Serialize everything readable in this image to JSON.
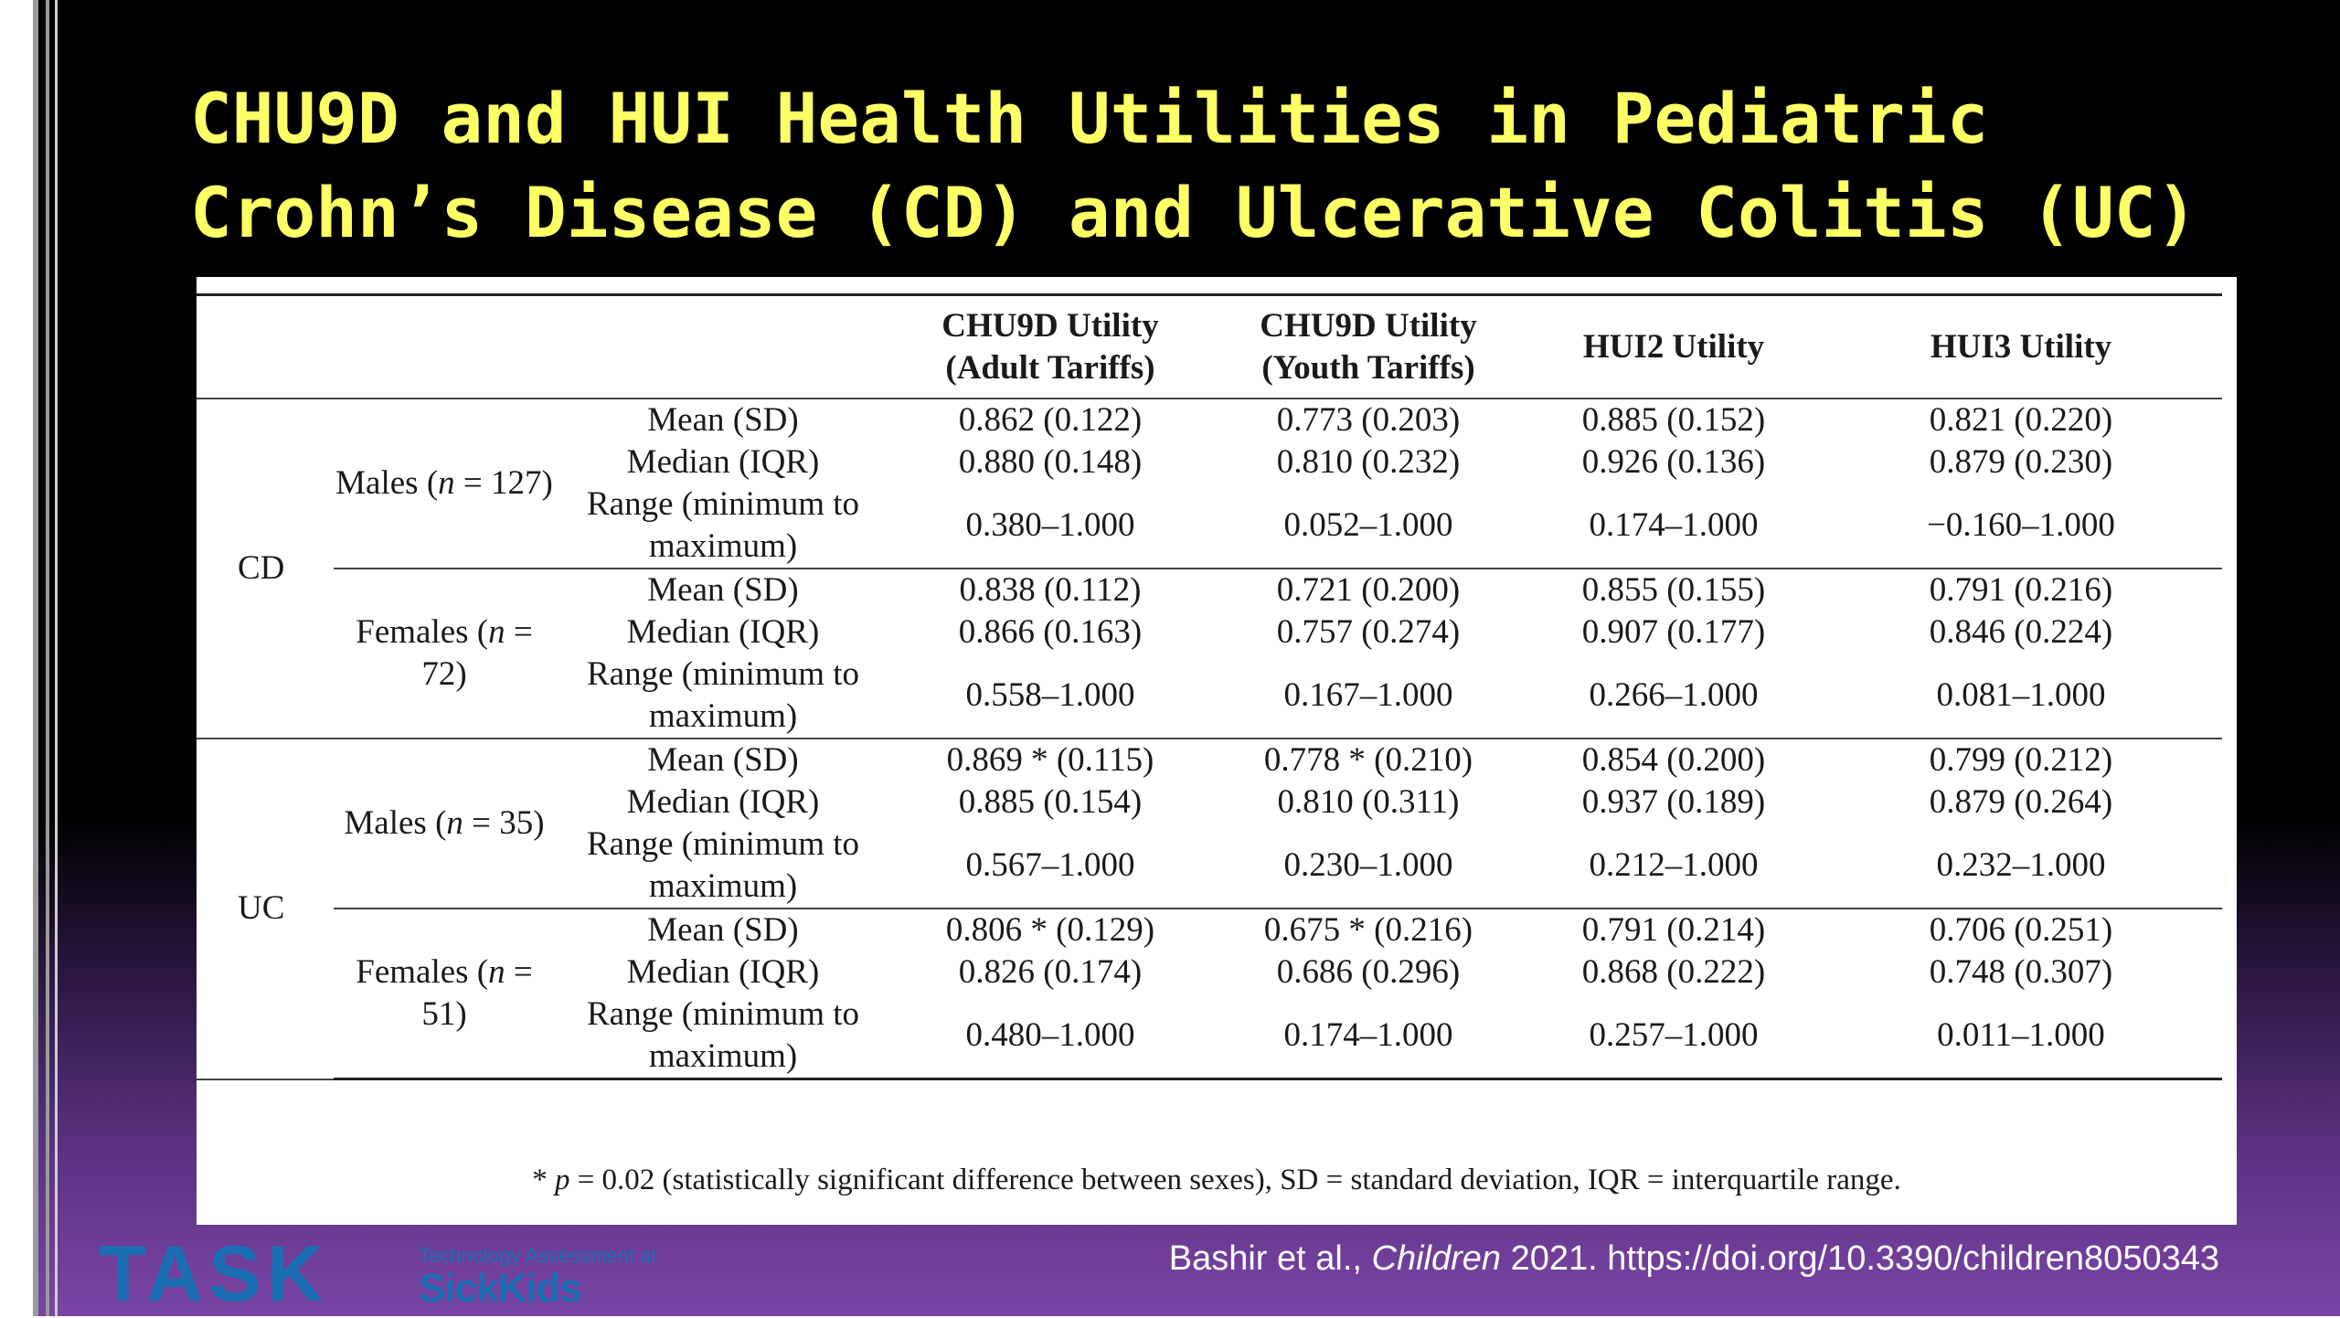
{
  "slide": {
    "title_line1": "CHU9D and HUI Health Utilities in Pediatric",
    "title_line2": "Crohn’s Disease (CD) and Ulcerative Colitis (UC)"
  },
  "table": {
    "headers": {
      "chu9d_adult_line1": "CHU9D Utility",
      "chu9d_adult_line2": "(Adult Tariffs)",
      "chu9d_youth_line1": "CHU9D Utility",
      "chu9d_youth_line2": "(Youth Tariffs)",
      "hui2": "HUI2 Utility",
      "hui3": "HUI3 Utility"
    },
    "stat_labels": {
      "mean": "Mean (SD)",
      "median": "Median (IQR)",
      "range_line1": "Range (minimum to",
      "range_line2": "maximum)"
    },
    "groups": [
      {
        "name": "CD",
        "subgroups": [
          {
            "label_prefix": "Males (",
            "n_symbol": "n",
            "label_suffix": " = 127)",
            "mean": [
              "0.862 (0.122)",
              "0.773 (0.203)",
              "0.885 (0.152)",
              "0.821 (0.220)"
            ],
            "median": [
              "0.880 (0.148)",
              "0.810 (0.232)",
              "0.926 (0.136)",
              "0.879 (0.230)"
            ],
            "range": [
              "0.380–1.000",
              "0.052–1.000",
              "0.174–1.000",
              "−0.160–1.000"
            ]
          },
          {
            "label_prefix": "Females (",
            "n_symbol": "n",
            "label_suffix": " = 72)",
            "mean": [
              "0.838 (0.112)",
              "0.721 (0.200)",
              "0.855 (0.155)",
              "0.791 (0.216)"
            ],
            "median": [
              "0.866 (0.163)",
              "0.757 (0.274)",
              "0.907 (0.177)",
              "0.846 (0.224)"
            ],
            "range": [
              "0.558–1.000",
              "0.167–1.000",
              "0.266–1.000",
              "0.081–1.000"
            ]
          }
        ]
      },
      {
        "name": "UC",
        "subgroups": [
          {
            "label_prefix": "Males (",
            "n_symbol": "n",
            "label_suffix": " = 35)",
            "mean": [
              "0.869 * (0.115)",
              "0.778 * (0.210)",
              "0.854 (0.200)",
              "0.799 (0.212)"
            ],
            "median": [
              "0.885 (0.154)",
              "0.810 (0.311)",
              "0.937 (0.189)",
              "0.879 (0.264)"
            ],
            "range": [
              "0.567–1.000",
              "0.230–1.000",
              "0.212–1.000",
              "0.232–1.000"
            ]
          },
          {
            "label_prefix": "Females (",
            "n_symbol": "n",
            "label_suffix": " = 51)",
            "mean": [
              "0.806 * (0.129)",
              "0.675 * (0.216)",
              "0.791 (0.214)",
              "0.706 (0.251)"
            ],
            "median": [
              "0.826 (0.174)",
              "0.686 (0.296)",
              "0.868 (0.222)",
              "0.748 (0.307)"
            ],
            "range": [
              "0.480–1.000",
              "0.174–1.000",
              "0.257–1.000",
              "0.011–1.000"
            ]
          }
        ]
      }
    ],
    "footnote_prefix": "* ",
    "footnote_p": "p",
    "footnote_rest": " = 0.02 (statistically significant difference between sexes), SD = standard deviation, IQR = interquartile range."
  },
  "logo": {
    "word": "TASK",
    "tagline": "Technology Assessment at",
    "sickkids": "SickKids"
  },
  "citation": {
    "authors": "Bashir et al., ",
    "journal": "Children",
    "rest": " 2021. https://doi.org/10.3390/children8050343"
  },
  "colors": {
    "title": "#ffff66",
    "logo_blue": "#1a6fb4",
    "background_top": "#000000",
    "background_bottom": "#7a45a6"
  }
}
